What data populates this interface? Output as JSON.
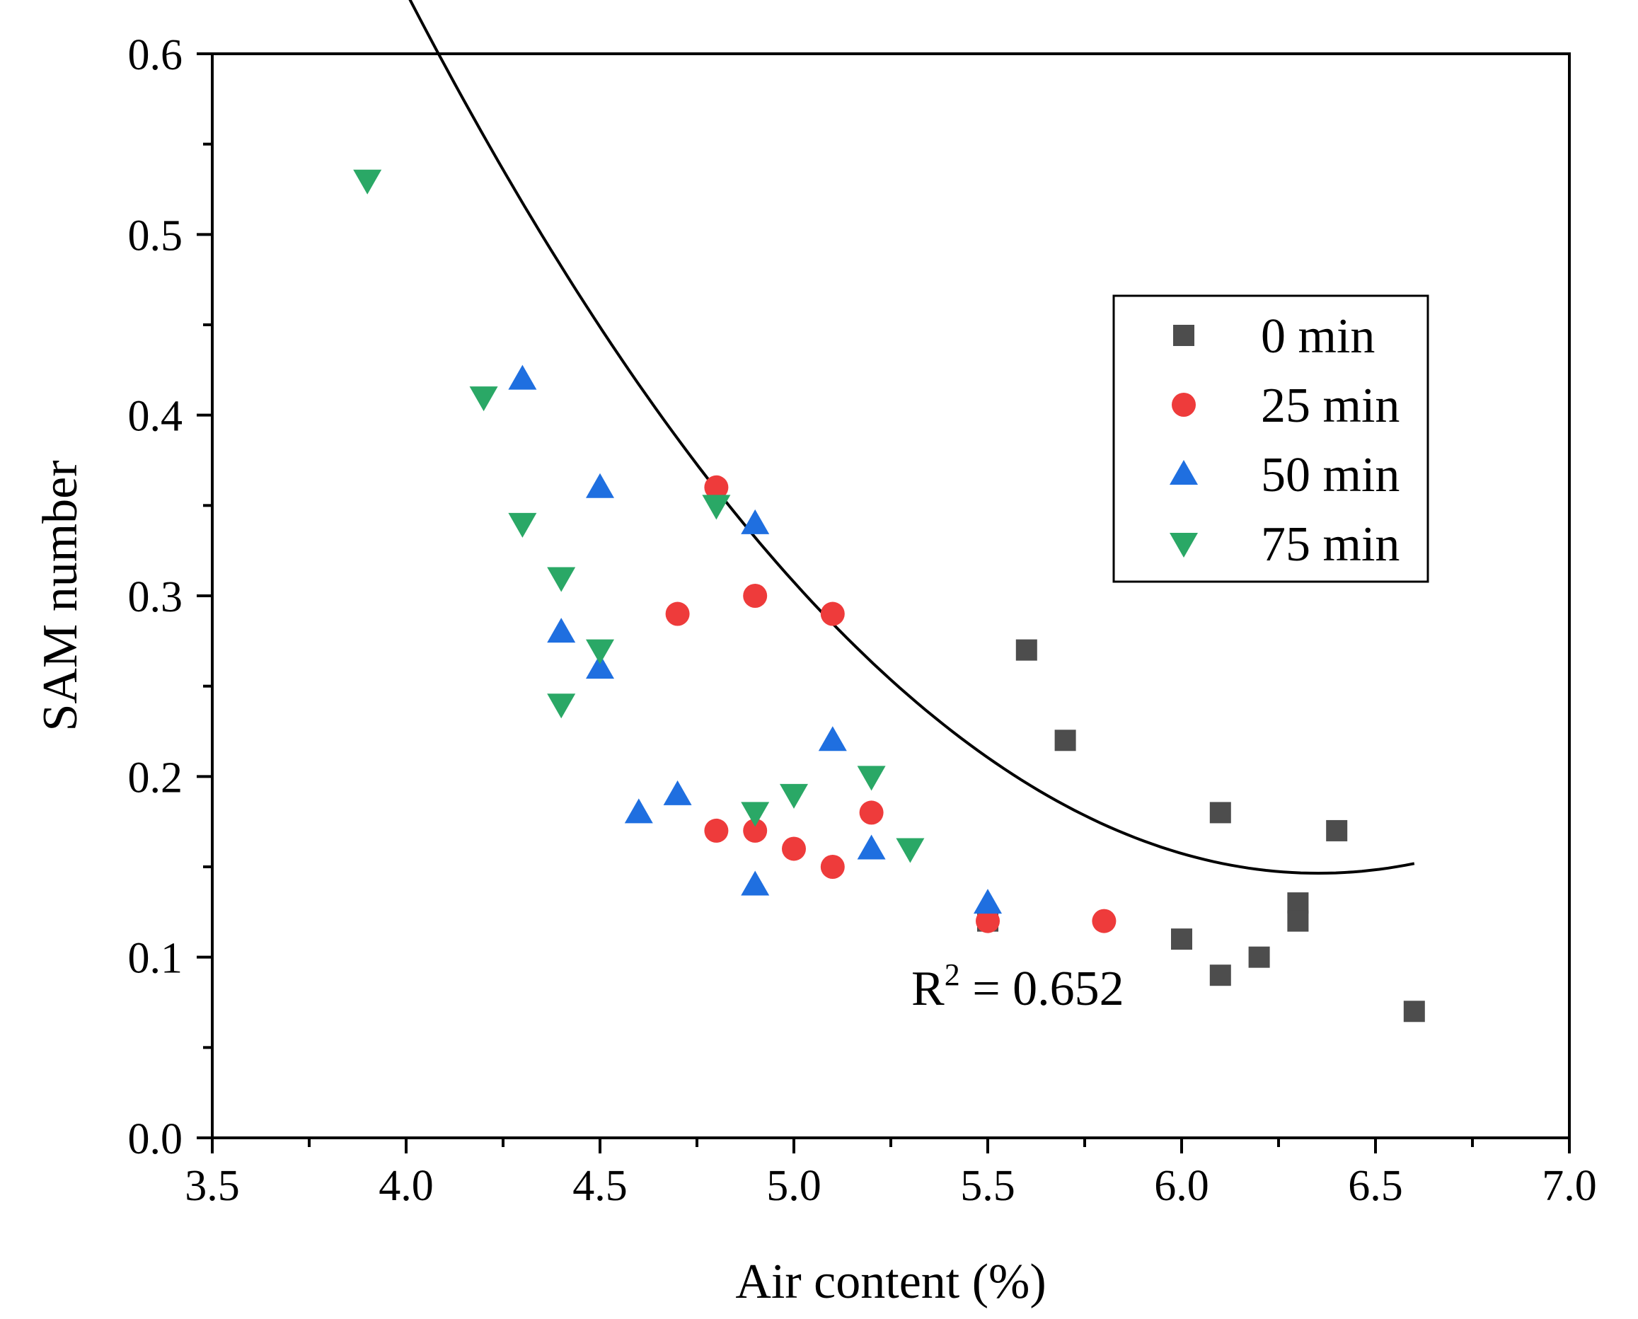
{
  "chart_data": {
    "type": "scatter",
    "title": "",
    "xlabel": "Air content (%)",
    "ylabel": "SAM number",
    "xlim": [
      3.5,
      7.0
    ],
    "ylim": [
      0.0,
      0.6
    ],
    "xticks": [
      "3.5",
      "4.0",
      "4.5",
      "5.0",
      "5.5",
      "6.0",
      "6.5",
      "7.0"
    ],
    "yticks": [
      "0.0",
      "0.1",
      "0.2",
      "0.3",
      "0.4",
      "0.5",
      "0.6"
    ],
    "legend_position": "top-right",
    "series": [
      {
        "name": "0 min",
        "marker": "square",
        "color": "#4d4d4d",
        "points": [
          [
            5.5,
            0.12
          ],
          [
            5.6,
            0.27
          ],
          [
            5.7,
            0.22
          ],
          [
            6.0,
            0.11
          ],
          [
            6.1,
            0.18
          ],
          [
            6.1,
            0.09
          ],
          [
            6.2,
            0.1
          ],
          [
            6.3,
            0.13
          ],
          [
            6.3,
            0.12
          ],
          [
            6.4,
            0.17
          ],
          [
            6.6,
            0.07
          ]
        ]
      },
      {
        "name": "25 min",
        "marker": "circle",
        "color": "#ee3b3b",
        "points": [
          [
            4.7,
            0.29
          ],
          [
            4.8,
            0.36
          ],
          [
            4.8,
            0.17
          ],
          [
            4.9,
            0.3
          ],
          [
            4.9,
            0.17
          ],
          [
            5.0,
            0.16
          ],
          [
            5.1,
            0.29
          ],
          [
            5.1,
            0.15
          ],
          [
            5.2,
            0.18
          ],
          [
            5.5,
            0.12
          ],
          [
            5.8,
            0.12
          ]
        ]
      },
      {
        "name": "50 min",
        "marker": "triangle-up",
        "color": "#1f6fe0",
        "points": [
          [
            4.3,
            0.42
          ],
          [
            4.4,
            0.28
          ],
          [
            4.5,
            0.36
          ],
          [
            4.5,
            0.26
          ],
          [
            4.6,
            0.18
          ],
          [
            4.7,
            0.19
          ],
          [
            4.9,
            0.34
          ],
          [
            4.9,
            0.14
          ],
          [
            5.1,
            0.22
          ],
          [
            5.2,
            0.16
          ],
          [
            5.5,
            0.13
          ]
        ]
      },
      {
        "name": "75 min",
        "marker": "triangle-down",
        "color": "#2aa866",
        "points": [
          [
            3.9,
            0.53
          ],
          [
            4.2,
            0.41
          ],
          [
            4.3,
            0.34
          ],
          [
            4.4,
            0.31
          ],
          [
            4.4,
            0.24
          ],
          [
            4.5,
            0.27
          ],
          [
            4.8,
            0.35
          ],
          [
            4.9,
            0.18
          ],
          [
            5.0,
            0.19
          ],
          [
            5.2,
            0.2
          ],
          [
            5.3,
            0.16
          ]
        ]
      }
    ],
    "fit": {
      "type": "polynomial-2",
      "x_range": [
        3.9,
        6.6
      ],
      "coefficients": [
        3.7016,
        -1.1193,
        0.0881
      ],
      "color": "#000000"
    },
    "annotation": {
      "text_base": "R",
      "text_sup": "2",
      "text_rest": " = 0.652",
      "x": 5.2,
      "y": 0.08
    }
  }
}
